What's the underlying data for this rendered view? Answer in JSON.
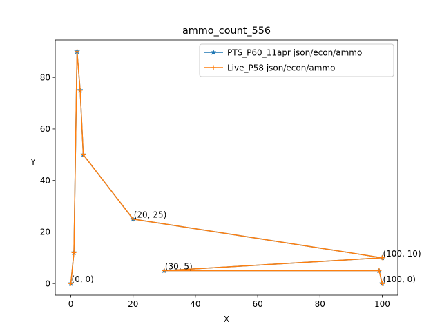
{
  "chart_data": {
    "type": "line",
    "title": "ammo_count_556",
    "xlabel": "X",
    "ylabel": "Y",
    "xlim": [
      -5,
      105
    ],
    "ylim": [
      -4.5,
      94.5
    ],
    "xticks": [
      0,
      20,
      40,
      60,
      80,
      100
    ],
    "yticks": [
      0,
      20,
      40,
      60,
      80
    ],
    "grid": false,
    "legend_position": "upper right",
    "series": [
      {
        "name": "PTS_P60_11apr json/econ/ammo",
        "color": "#1f77b4",
        "marker": "star",
        "x": [
          0,
          1,
          2,
          3,
          4,
          20,
          100,
          30,
          99,
          100
        ],
        "y": [
          0,
          12,
          90,
          75,
          50,
          25,
          10,
          5,
          5,
          0
        ]
      },
      {
        "name": "Live_P58 json/econ/ammo",
        "color": "#ff7f0e",
        "marker": "plus",
        "x": [
          0,
          1,
          2,
          3,
          4,
          20,
          100,
          30,
          99,
          100
        ],
        "y": [
          0,
          12,
          90,
          75,
          50,
          25,
          10,
          5,
          5,
          0
        ]
      }
    ],
    "annotations": [
      {
        "text": "(0, 0)",
        "x": 0,
        "y": 0
      },
      {
        "text": "(20, 25)",
        "x": 20,
        "y": 25
      },
      {
        "text": "(100, 10)",
        "x": 100,
        "y": 10
      },
      {
        "text": "(30, 5)",
        "x": 30,
        "y": 5
      },
      {
        "text": "(100, 0)",
        "x": 100,
        "y": 0
      }
    ]
  }
}
